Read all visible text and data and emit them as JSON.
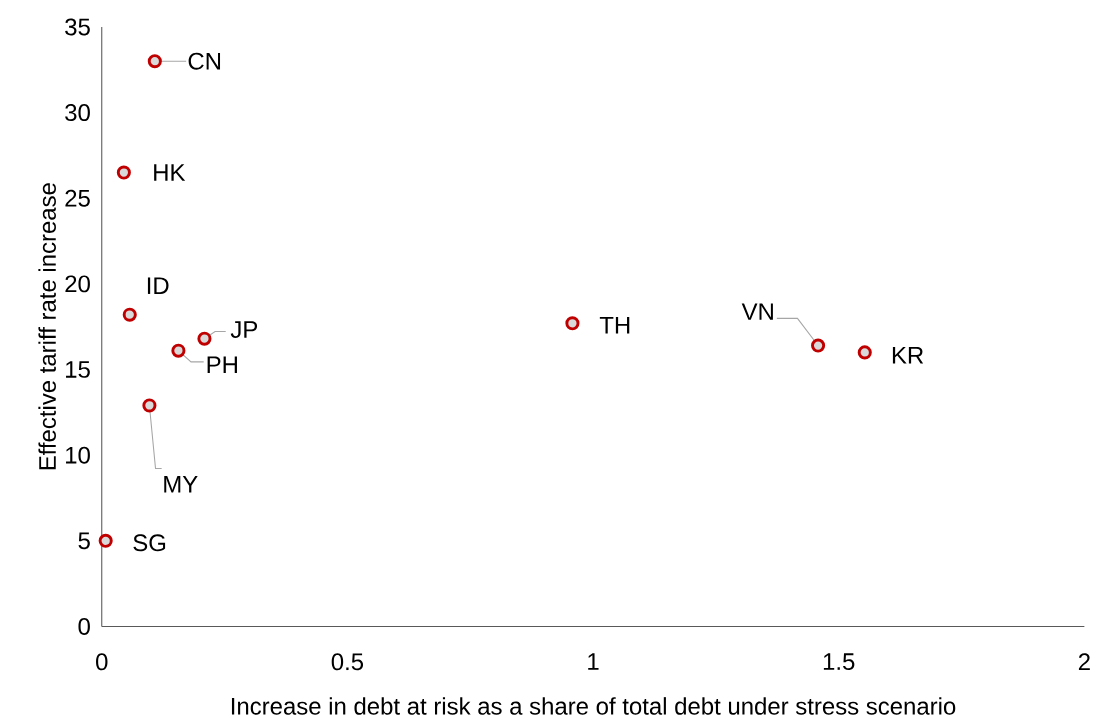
{
  "chart_data": {
    "type": "scatter",
    "xlabel": "Increase in debt at risk as a share of total debt under stress scenario",
    "ylabel": "Effective tariff rate increase",
    "xlim": [
      0,
      2
    ],
    "ylim": [
      0,
      35
    ],
    "xticks": [
      0,
      0.5,
      1,
      1.5,
      2
    ],
    "yticks": [
      0,
      5,
      10,
      15,
      20,
      25,
      30,
      35
    ],
    "marker": "circle",
    "series": [
      {
        "color": "#c00000",
        "x": [
          0.108,
          0.045,
          0.057,
          0.209,
          0.156,
          0.097,
          0.008,
          0.958,
          1.458,
          1.553
        ],
        "values": [
          33,
          26.5,
          18.2,
          16.8,
          16.1,
          12.9,
          5,
          17.7,
          16.4,
          16
        ]
      }
    ],
    "annotations": [
      {
        "text": "CN",
        "x": 0.108,
        "y": 33
      },
      {
        "text": "HK",
        "x": 0.045,
        "y": 26.5
      },
      {
        "text": "ID",
        "x": 0.057,
        "y": 18.2
      },
      {
        "text": "JP",
        "x": 0.209,
        "y": 16.8
      },
      {
        "text": "PH",
        "x": 0.156,
        "y": 16.1
      },
      {
        "text": "MY",
        "x": 0.097,
        "y": 12.9
      },
      {
        "text": "SG",
        "x": 0.008,
        "y": 5
      },
      {
        "text": "TH",
        "x": 0.958,
        "y": 17.7
      },
      {
        "text": "VN",
        "x": 1.458,
        "y": 16.4
      },
      {
        "text": "KR",
        "x": 1.553,
        "y": 16
      }
    ]
  }
}
